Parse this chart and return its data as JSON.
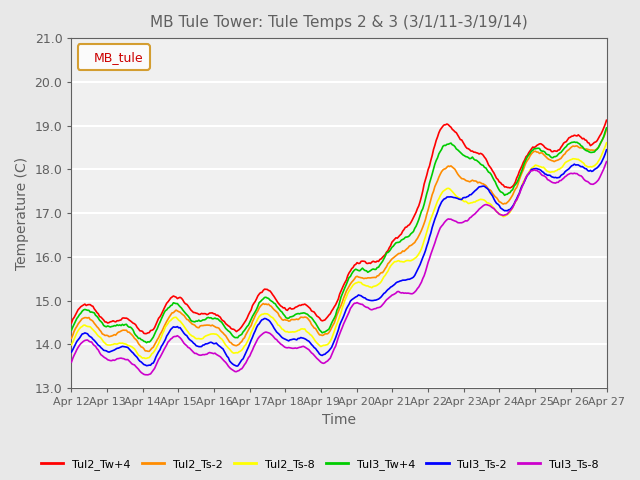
{
  "title": "MB Tule Tower: Tule Temps 2 & 3 (3/1/11-3/19/14)",
  "xlabel": "Time",
  "ylabel": "Temperature (C)",
  "ylim": [
    13.0,
    21.0
  ],
  "yticks": [
    13.0,
    14.0,
    15.0,
    16.0,
    17.0,
    18.0,
    19.0,
    20.0,
    21.0
  ],
  "xtick_labels": [
    "Apr 12",
    "Apr 13",
    "Apr 14",
    "Apr 15",
    "Apr 16",
    "Apr 17",
    "Apr 18",
    "Apr 19",
    "Apr 20",
    "Apr 21",
    "Apr 22",
    "Apr 23",
    "Apr 24",
    "Apr 25",
    "Apr 26",
    "Apr 27"
  ],
  "legend_label": "MB_tule",
  "series_colors": [
    "#ff0000",
    "#ff8c00",
    "#ffff00",
    "#00cc00",
    "#0000ff",
    "#cc00cc"
  ],
  "series_names": [
    "Tul2_Tw+4",
    "Tul2_Ts-2",
    "Tul2_Ts-8",
    "Tul3_Tw+4",
    "Tul3_Ts-2",
    "Tul3_Ts-8"
  ],
  "background_color": "#e8e8e8",
  "plot_bg_color": "#f0f0f0",
  "grid_color": "#ffffff",
  "title_color": "#606060",
  "axis_color": "#606060"
}
